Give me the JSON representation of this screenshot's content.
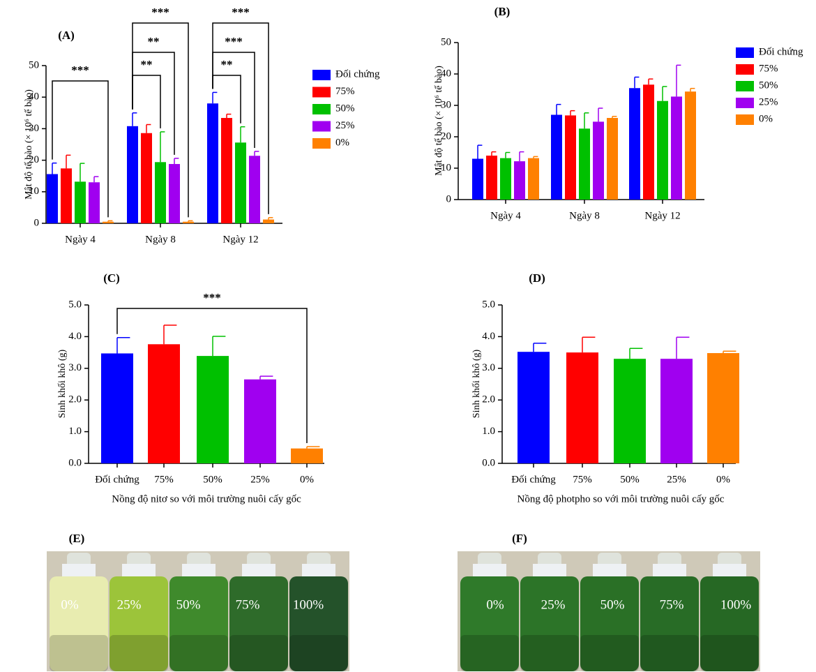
{
  "chart_data": [
    {
      "type": "bar",
      "title": "(A)",
      "ylabel": "Mật độ tế bào (× 10⁶ tế bào)",
      "categories": [
        "Ngày 4",
        "Ngày 8",
        "Ngày 12"
      ],
      "series": [
        {
          "name": "Đối chứng",
          "color": "#0000ff",
          "values": [
            15.6,
            30.8,
            38.0
          ],
          "errors": [
            3.5,
            4.2,
            3.5
          ]
        },
        {
          "name": "75%",
          "color": "#ff0000",
          "values": [
            17.4,
            28.6,
            33.4
          ],
          "errors": [
            4.2,
            2.7,
            1.2
          ]
        },
        {
          "name": "50%",
          "color": "#00c000",
          "values": [
            13.2,
            19.4,
            25.6
          ],
          "errors": [
            5.8,
            9.6,
            5.0
          ]
        },
        {
          "name": "25%",
          "color": "#a000f0",
          "values": [
            13.0,
            18.8,
            21.4
          ],
          "errors": [
            1.8,
            1.8,
            1.4
          ]
        },
        {
          "name": "0%",
          "color": "#ff8000",
          "values": [
            0.5,
            0.5,
            1.2
          ],
          "errors": [
            0.3,
            0.3,
            0.6
          ]
        }
      ],
      "ylim": [
        0,
        50
      ],
      "yticks": [
        0,
        10,
        20,
        30,
        40,
        50
      ],
      "annotations": [
        {
          "text": "***",
          "category": 0,
          "series": [
            0,
            4
          ]
        },
        {
          "text": "**",
          "category": 1,
          "series": [
            0,
            2
          ]
        },
        {
          "text": "**",
          "category": 1,
          "series": [
            0,
            3
          ]
        },
        {
          "text": "***",
          "category": 1,
          "series": [
            0,
            4
          ]
        },
        {
          "text": "**",
          "category": 2,
          "series": [
            0,
            2
          ]
        },
        {
          "text": "***",
          "category": 2,
          "series": [
            0,
            3
          ]
        },
        {
          "text": "***",
          "category": 2,
          "series": [
            0,
            4
          ]
        }
      ]
    },
    {
      "type": "bar",
      "title": "(B)",
      "ylabel": "Mật độ tế bào (× 10⁶ tế bào)",
      "categories": [
        "Ngày 4",
        "Ngày 8",
        "Ngày 12"
      ],
      "series": [
        {
          "name": "Đối chứng",
          "color": "#0000ff",
          "values": [
            13.0,
            27.0,
            35.5
          ],
          "errors": [
            4.3,
            3.3,
            3.5
          ]
        },
        {
          "name": "75%",
          "color": "#ff0000",
          "values": [
            14.0,
            26.8,
            36.6
          ],
          "errors": [
            1.2,
            1.5,
            1.8
          ]
        },
        {
          "name": "50%",
          "color": "#00c000",
          "values": [
            13.2,
            22.6,
            31.4
          ],
          "errors": [
            1.8,
            5.0,
            4.6
          ]
        },
        {
          "name": "25%",
          "color": "#a000f0",
          "values": [
            12.2,
            24.8,
            32.8
          ],
          "errors": [
            3.0,
            4.3,
            10.0
          ]
        },
        {
          "name": "0%",
          "color": "#ff8000",
          "values": [
            13.2,
            26.0,
            34.4
          ],
          "errors": [
            0.5,
            0.5,
            1.0
          ]
        }
      ],
      "ylim": [
        0,
        50
      ],
      "yticks": [
        0,
        10,
        20,
        30,
        40,
        50
      ]
    },
    {
      "type": "bar",
      "title": "(C)",
      "ylabel": "Sinh khối khô (g)",
      "xlabel": "Nồng độ nitơ so với môi trường nuôi cấy gốc",
      "categories": [
        "Đối chứng",
        "75%",
        "50%",
        "25%",
        "0%"
      ],
      "values": [
        3.47,
        3.76,
        3.39,
        2.65,
        0.47
      ],
      "errors": [
        0.5,
        0.6,
        0.62,
        0.1,
        0.06
      ],
      "colors": [
        "#0000ff",
        "#ff0000",
        "#00c000",
        "#a000f0",
        "#ff8000"
      ],
      "ylim": [
        0,
        5
      ],
      "yticks": [
        {
          "value": 0,
          "label": "0.0"
        },
        {
          "value": 1,
          "label": "1.0"
        },
        {
          "value": 2,
          "label": "2.0"
        },
        {
          "value": 3,
          "label": "3.0"
        },
        {
          "value": 4,
          "label": "4.0"
        },
        {
          "value": 5,
          "label": "5.0"
        }
      ],
      "annotations": [
        {
          "text": "***",
          "categories": [
            0,
            4
          ]
        }
      ]
    },
    {
      "type": "bar",
      "title": "(D)",
      "ylabel": "Sinh khối khô (g)",
      "xlabel": "Nồng độ photpho so với môi trường nuôi cấy gốc",
      "categories": [
        "Đối chứng",
        "75%",
        "50%",
        "25%",
        "0%"
      ],
      "values": [
        3.52,
        3.5,
        3.3,
        3.3,
        3.48
      ],
      "errors": [
        0.27,
        0.48,
        0.33,
        0.68,
        0.06
      ],
      "colors": [
        "#0000ff",
        "#ff0000",
        "#00c000",
        "#a000f0",
        "#ff8000"
      ],
      "ylim": [
        0,
        5
      ],
      "yticks": [
        {
          "value": 0,
          "label": "0.0"
        },
        {
          "value": 1,
          "label": "1.0"
        },
        {
          "value": 2,
          "label": "2.0"
        },
        {
          "value": 3,
          "label": "3.0"
        },
        {
          "value": 4,
          "label": "4.0"
        },
        {
          "value": 5,
          "label": "5.0"
        }
      ]
    }
  ],
  "photos": [
    {
      "label": "(E)",
      "captions": [
        "0%",
        "25%",
        "50%",
        "75%",
        "100%"
      ]
    },
    {
      "label": "(F)",
      "captions": [
        "0%",
        "25%",
        "50%",
        "75%",
        "100%"
      ]
    }
  ]
}
